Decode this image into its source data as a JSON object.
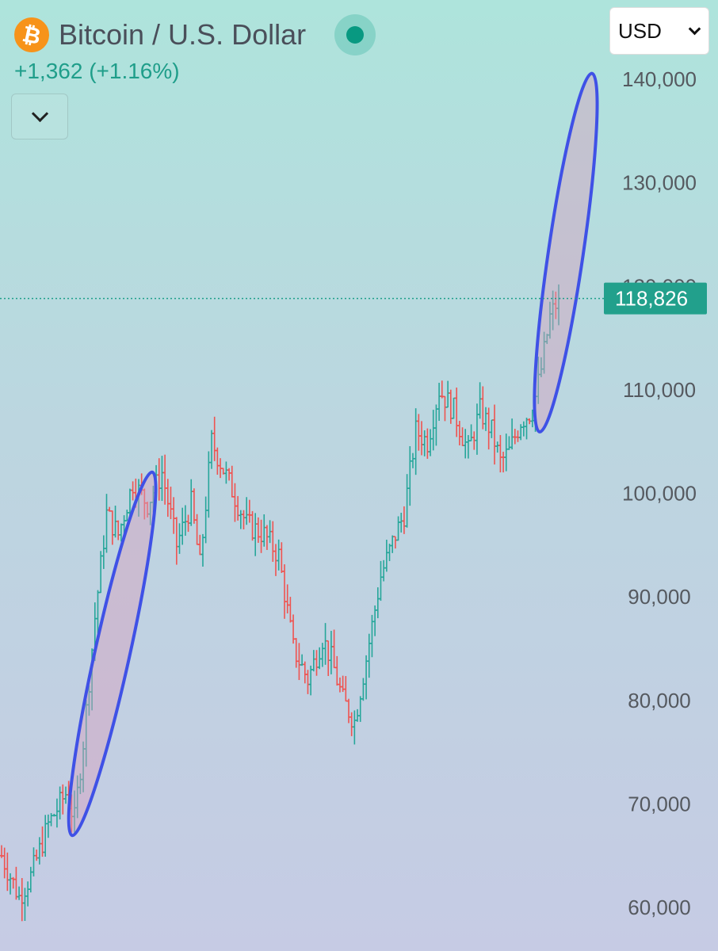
{
  "header": {
    "logo_glyph": "₿",
    "title": "Bitcoin / U.S. Dollar",
    "change": "+1,362 (+1.16%)"
  },
  "currency_select": {
    "value": "USD"
  },
  "colors": {
    "up": "#26a69a",
    "down": "#ef5350",
    "highlight_stroke": "#3f51e6",
    "price_tag": "#22a08c"
  },
  "icons": {
    "logo": "bitcoin-icon",
    "live": "live-dot-icon",
    "collapse": "chevron-down-icon",
    "currency_dropdown": "chevron-down-icon"
  },
  "chart_data": {
    "type": "candlestick",
    "ylim": [
      58000,
      142000
    ],
    "y_ticks": [
      "60,000",
      "70,000",
      "80,000",
      "90,000",
      "100,000",
      "110,000",
      "120,000",
      "130,000",
      "140,000"
    ],
    "y_tick_values": [
      60000,
      70000,
      80000,
      90000,
      100000,
      110000,
      120000,
      130000,
      140000
    ],
    "last_price": 118826,
    "last_price_label": "118,826",
    "anchors": [
      [
        0,
        65000
      ],
      [
        6,
        61000
      ],
      [
        10,
        63000
      ],
      [
        16,
        68000
      ],
      [
        22,
        71000
      ],
      [
        25,
        68500
      ],
      [
        28,
        76000
      ],
      [
        32,
        88000
      ],
      [
        36,
        98000
      ],
      [
        40,
        96000
      ],
      [
        45,
        101000
      ],
      [
        50,
        99000
      ],
      [
        55,
        102000
      ],
      [
        60,
        95000
      ],
      [
        65,
        99000
      ],
      [
        68,
        93000
      ],
      [
        72,
        105000
      ],
      [
        78,
        101000
      ],
      [
        84,
        97000
      ],
      [
        90,
        96000
      ],
      [
        95,
        94000
      ],
      [
        100,
        85000
      ],
      [
        105,
        82000
      ],
      [
        110,
        86000
      ],
      [
        113,
        84000
      ],
      [
        117,
        80000
      ],
      [
        121,
        78000
      ],
      [
        125,
        84000
      ],
      [
        130,
        92000
      ],
      [
        135,
        96000
      ],
      [
        138,
        98000
      ],
      [
        142,
        106000
      ],
      [
        146,
        105000
      ],
      [
        150,
        110000
      ],
      [
        155,
        108000
      ],
      [
        160,
        104000
      ],
      [
        164,
        108000
      ],
      [
        168,
        106000
      ],
      [
        171,
        103000
      ],
      [
        174,
        104000
      ],
      [
        178,
        107000
      ],
      [
        182,
        108000
      ],
      [
        185,
        112000
      ],
      [
        188,
        117000
      ],
      [
        191,
        118826
      ]
    ],
    "highlights": [
      {
        "from_index": 25,
        "to_index": 40,
        "low": 68000,
        "high": 101000
      },
      {
        "from_index": 185,
        "to_index": 191,
        "low": 107000,
        "high": 139500
      }
    ]
  }
}
